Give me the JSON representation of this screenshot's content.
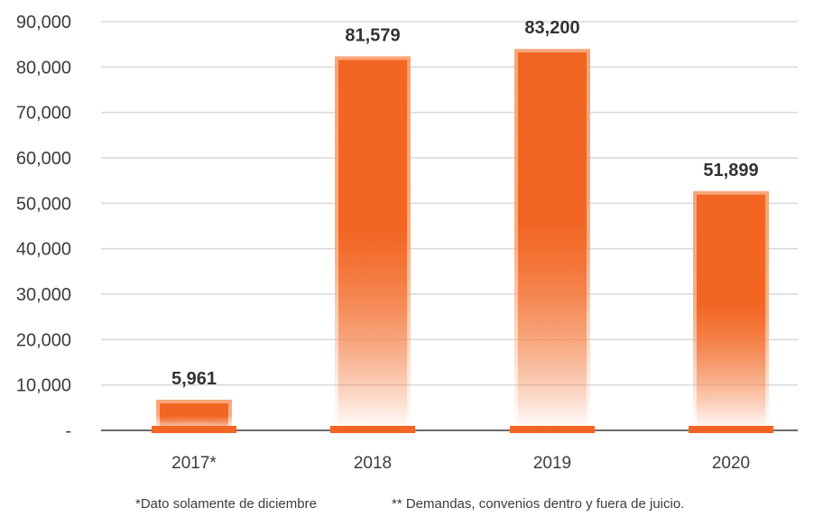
{
  "chart_data": {
    "type": "bar",
    "categories": [
      "2017*",
      "2018",
      "2019",
      "2020"
    ],
    "values": [
      5961,
      81579,
      83200,
      51899
    ],
    "data_labels": [
      "5,961",
      "81,579",
      "83,200",
      "51,899"
    ],
    "y_tick_labels": [
      "-",
      "10,000",
      "20,000",
      "30,000",
      "40,000",
      "50,000",
      "60,000",
      "70,000",
      "80,000",
      "90,000"
    ],
    "y_ticks": [
      0,
      10000,
      20000,
      30000,
      40000,
      50000,
      60000,
      70000,
      80000,
      90000
    ],
    "ylim": [
      0,
      90000
    ],
    "grid": true,
    "legend": "none",
    "footnotes": [
      "*Dato solamente de diciembre",
      "** Demandas, convenios dentro y fuera de juicio."
    ],
    "colors": {
      "bar": "#f26522",
      "bar_outline": "#f7a578",
      "grid": "#d9d9d9",
      "axis": "#3c3c3c",
      "text": "#3c3c3c",
      "label": "#333333"
    }
  }
}
